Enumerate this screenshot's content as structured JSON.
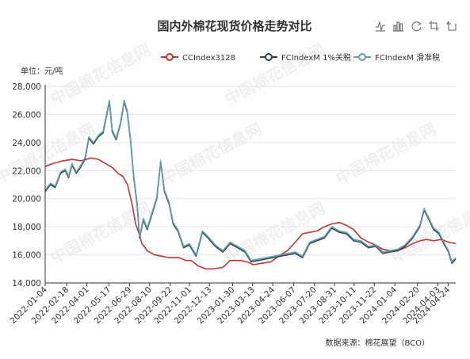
{
  "chart_data": {
    "type": "line",
    "title": "国内外棉花现货价格走势对比",
    "unit_label": "单位：元/吨",
    "source": "数据来源：棉花展望（BCO）",
    "watermark": "中国棉花信息网",
    "ylim": [
      14000,
      28000
    ],
    "yticks": [
      "14,000",
      "16,000",
      "18,000",
      "20,000",
      "22,000",
      "24,000",
      "26,000",
      "28,000"
    ],
    "ytick_values": [
      14000,
      16000,
      18000,
      20000,
      22000,
      24000,
      26000,
      28000
    ],
    "x_range": [
      "2022-01-04",
      "2024-05-10"
    ],
    "xticks": [
      "2022-01-04",
      "2022-02-18",
      "2022-04-01",
      "2022-05-17",
      "2022-06-29",
      "2022-08-10",
      "2022-09-22",
      "2022-11-01",
      "2022-12-13",
      "2023-01-30",
      "2023-03-13",
      "2023-04-24",
      "2023-06-07",
      "2023-07-20",
      "2023-08-31",
      "2023-10-11",
      "2023-11-22",
      "2024-01-04",
      "2024-02-20",
      "2024-04-03",
      "2024-04-24"
    ],
    "grid": true,
    "legend_position": "top-right",
    "series": [
      {
        "name": "CCIndex3128",
        "color": "#c23531",
        "points": [
          [
            "2022-01-04",
            22300
          ],
          [
            "2022-01-20",
            22500
          ],
          [
            "2022-02-10",
            22700
          ],
          [
            "2022-03-01",
            22800
          ],
          [
            "2022-03-20",
            22700
          ],
          [
            "2022-04-10",
            22900
          ],
          [
            "2022-04-25",
            22800
          ],
          [
            "2022-05-10",
            22500
          ],
          [
            "2022-05-25",
            22200
          ],
          [
            "2022-06-05",
            21800
          ],
          [
            "2022-06-15",
            21600
          ],
          [
            "2022-06-25",
            21000
          ],
          [
            "2022-07-05",
            19500
          ],
          [
            "2022-07-12",
            18200
          ],
          [
            "2022-07-18",
            17600
          ],
          [
            "2022-07-25",
            16800
          ],
          [
            "2022-08-05",
            16300
          ],
          [
            "2022-08-20",
            16000
          ],
          [
            "2022-09-05",
            15900
          ],
          [
            "2022-09-20",
            15800
          ],
          [
            "2022-10-10",
            15800
          ],
          [
            "2022-10-25",
            15600
          ],
          [
            "2022-11-05",
            15600
          ],
          [
            "2022-11-20",
            15200
          ],
          [
            "2022-12-05",
            15000
          ],
          [
            "2022-12-20",
            15000
          ],
          [
            "2023-01-10",
            15100
          ],
          [
            "2023-01-25",
            15600
          ],
          [
            "2023-02-15",
            15600
          ],
          [
            "2023-03-01",
            15500
          ],
          [
            "2023-03-15",
            15300
          ],
          [
            "2023-04-01",
            15400
          ],
          [
            "2023-04-20",
            15500
          ],
          [
            "2023-05-10",
            16000
          ],
          [
            "2023-05-25",
            16300
          ],
          [
            "2023-06-10",
            16900
          ],
          [
            "2023-06-25",
            17500
          ],
          [
            "2023-07-10",
            17600
          ],
          [
            "2023-07-25",
            17700
          ],
          [
            "2023-08-10",
            18000
          ],
          [
            "2023-08-25",
            18200
          ],
          [
            "2023-09-10",
            18300
          ],
          [
            "2023-09-25",
            18100
          ],
          [
            "2023-10-10",
            17800
          ],
          [
            "2023-10-25",
            17200
          ],
          [
            "2023-11-10",
            16900
          ],
          [
            "2023-11-25",
            16700
          ],
          [
            "2023-12-10",
            16400
          ],
          [
            "2023-12-25",
            16300
          ],
          [
            "2024-01-10",
            16300
          ],
          [
            "2024-01-25",
            16500
          ],
          [
            "2024-02-10",
            16800
          ],
          [
            "2024-02-25",
            17000
          ],
          [
            "2024-03-10",
            17100
          ],
          [
            "2024-03-25",
            17000
          ],
          [
            "2024-04-10",
            17100
          ],
          [
            "2024-04-25",
            16900
          ],
          [
            "2024-05-10",
            16800
          ]
        ]
      },
      {
        "name": "FCIndexM 1%关税",
        "color": "#2f4554",
        "points": [
          [
            "2022-01-04",
            20500
          ],
          [
            "2022-01-15",
            21000
          ],
          [
            "2022-01-25",
            20800
          ],
          [
            "2022-02-05",
            21800
          ],
          [
            "2022-02-15",
            22000
          ],
          [
            "2022-02-22",
            21500
          ],
          [
            "2022-03-01",
            22400
          ],
          [
            "2022-03-10",
            21800
          ],
          [
            "2022-03-20",
            22300
          ],
          [
            "2022-03-28",
            22800
          ],
          [
            "2022-04-05",
            24300
          ],
          [
            "2022-04-15",
            23900
          ],
          [
            "2022-04-25",
            24400
          ],
          [
            "2022-05-05",
            24700
          ],
          [
            "2022-05-12",
            25900
          ],
          [
            "2022-05-18",
            26900
          ],
          [
            "2022-05-24",
            24800
          ],
          [
            "2022-06-01",
            24200
          ],
          [
            "2022-06-10",
            25300
          ],
          [
            "2022-06-18",
            26900
          ],
          [
            "2022-06-24",
            26200
          ],
          [
            "2022-07-01",
            24200
          ],
          [
            "2022-07-08",
            21500
          ],
          [
            "2022-07-15",
            19500
          ],
          [
            "2022-07-20",
            17200
          ],
          [
            "2022-07-28",
            18500
          ],
          [
            "2022-08-05",
            17800
          ],
          [
            "2022-08-15",
            18900
          ],
          [
            "2022-08-25",
            20000
          ],
          [
            "2022-09-02",
            22600
          ],
          [
            "2022-09-10",
            20500
          ],
          [
            "2022-09-20",
            19600
          ],
          [
            "2022-09-28",
            18200
          ],
          [
            "2022-10-08",
            17700
          ],
          [
            "2022-10-20",
            16500
          ],
          [
            "2022-11-01",
            16700
          ],
          [
            "2022-11-15",
            15900
          ],
          [
            "2022-11-28",
            17600
          ],
          [
            "2022-12-10",
            17200
          ],
          [
            "2022-12-25",
            16600
          ],
          [
            "2023-01-10",
            16200
          ],
          [
            "2023-01-25",
            16800
          ],
          [
            "2023-02-10",
            16500
          ],
          [
            "2023-02-25",
            16200
          ],
          [
            "2023-03-10",
            15500
          ],
          [
            "2023-03-25",
            15600
          ],
          [
            "2023-04-10",
            15700
          ],
          [
            "2023-04-25",
            15800
          ],
          [
            "2023-05-10",
            15900
          ],
          [
            "2023-05-25",
            16000
          ],
          [
            "2023-06-10",
            16100
          ],
          [
            "2023-06-25",
            15800
          ],
          [
            "2023-07-10",
            16800
          ],
          [
            "2023-07-25",
            17000
          ],
          [
            "2023-08-10",
            17200
          ],
          [
            "2023-08-25",
            17900
          ],
          [
            "2023-09-10",
            17600
          ],
          [
            "2023-09-25",
            17500
          ],
          [
            "2023-10-10",
            17000
          ],
          [
            "2023-10-25",
            16900
          ],
          [
            "2023-11-10",
            16500
          ],
          [
            "2023-11-25",
            16600
          ],
          [
            "2023-12-10",
            16100
          ],
          [
            "2023-12-25",
            16200
          ],
          [
            "2024-01-10",
            16300
          ],
          [
            "2024-01-25",
            16600
          ],
          [
            "2024-02-10",
            17200
          ],
          [
            "2024-02-25",
            18000
          ],
          [
            "2024-03-05",
            19200
          ],
          [
            "2024-03-15",
            18500
          ],
          [
            "2024-03-25",
            17800
          ],
          [
            "2024-04-05",
            17500
          ],
          [
            "2024-04-15",
            16800
          ],
          [
            "2024-04-25",
            16200
          ],
          [
            "2024-05-02",
            15400
          ],
          [
            "2024-05-10",
            15700
          ]
        ]
      },
      {
        "name": "FCIndexM 滑准税",
        "color": "#61a0a8",
        "points": [
          [
            "2022-01-04",
            20600
          ],
          [
            "2022-01-15",
            21100
          ],
          [
            "2022-01-25",
            20900
          ],
          [
            "2022-02-05",
            21900
          ],
          [
            "2022-02-15",
            22100
          ],
          [
            "2022-02-22",
            21600
          ],
          [
            "2022-03-01",
            22500
          ],
          [
            "2022-03-10",
            21900
          ],
          [
            "2022-03-20",
            22400
          ],
          [
            "2022-03-28",
            22900
          ],
          [
            "2022-04-05",
            24400
          ],
          [
            "2022-04-15",
            24000
          ],
          [
            "2022-04-25",
            24500
          ],
          [
            "2022-05-05",
            24800
          ],
          [
            "2022-05-12",
            26000
          ],
          [
            "2022-05-18",
            27000
          ],
          [
            "2022-05-24",
            24900
          ],
          [
            "2022-06-01",
            24300
          ],
          [
            "2022-06-10",
            25400
          ],
          [
            "2022-06-18",
            27000
          ],
          [
            "2022-06-24",
            26300
          ],
          [
            "2022-07-01",
            24300
          ],
          [
            "2022-07-08",
            21600
          ],
          [
            "2022-07-15",
            19600
          ],
          [
            "2022-07-20",
            17300
          ],
          [
            "2022-07-28",
            18600
          ],
          [
            "2022-08-05",
            17900
          ],
          [
            "2022-08-15",
            19000
          ],
          [
            "2022-08-25",
            20100
          ],
          [
            "2022-09-02",
            22700
          ],
          [
            "2022-09-10",
            20600
          ],
          [
            "2022-09-20",
            19700
          ],
          [
            "2022-09-28",
            18300
          ],
          [
            "2022-10-08",
            17800
          ],
          [
            "2022-10-20",
            16600
          ],
          [
            "2022-11-01",
            16800
          ],
          [
            "2022-11-15",
            16000
          ],
          [
            "2022-11-28",
            17700
          ],
          [
            "2022-12-10",
            17300
          ],
          [
            "2022-12-25",
            16700
          ],
          [
            "2023-01-10",
            16300
          ],
          [
            "2023-01-25",
            16900
          ],
          [
            "2023-02-10",
            16600
          ],
          [
            "2023-02-25",
            16300
          ],
          [
            "2023-03-10",
            15600
          ],
          [
            "2023-03-25",
            15700
          ],
          [
            "2023-04-10",
            15800
          ],
          [
            "2023-04-25",
            15900
          ],
          [
            "2023-05-10",
            16000
          ],
          [
            "2023-05-25",
            16100
          ],
          [
            "2023-06-10",
            16200
          ],
          [
            "2023-06-25",
            15900
          ],
          [
            "2023-07-10",
            16900
          ],
          [
            "2023-07-25",
            17100
          ],
          [
            "2023-08-10",
            17300
          ],
          [
            "2023-08-25",
            18000
          ],
          [
            "2023-09-10",
            17700
          ],
          [
            "2023-09-25",
            17600
          ],
          [
            "2023-10-10",
            17100
          ],
          [
            "2023-10-25",
            17000
          ],
          [
            "2023-11-10",
            16600
          ],
          [
            "2023-11-25",
            16700
          ],
          [
            "2023-12-10",
            16200
          ],
          [
            "2023-12-25",
            16300
          ],
          [
            "2024-01-10",
            16400
          ],
          [
            "2024-01-25",
            16700
          ],
          [
            "2024-02-10",
            17300
          ],
          [
            "2024-02-25",
            18100
          ],
          [
            "2024-03-05",
            19300
          ],
          [
            "2024-03-15",
            18600
          ],
          [
            "2024-03-25",
            17900
          ],
          [
            "2024-04-05",
            17600
          ],
          [
            "2024-04-15",
            16900
          ],
          [
            "2024-04-25",
            16300
          ],
          [
            "2024-05-02",
            15500
          ],
          [
            "2024-05-10",
            15800
          ]
        ]
      }
    ]
  },
  "toolbox": [
    {
      "icon": "line-switch-icon"
    },
    {
      "icon": "bar-switch-icon"
    },
    {
      "icon": "restore-icon"
    },
    {
      "icon": "zoom-icon"
    },
    {
      "icon": "zoom-reset-icon"
    }
  ]
}
